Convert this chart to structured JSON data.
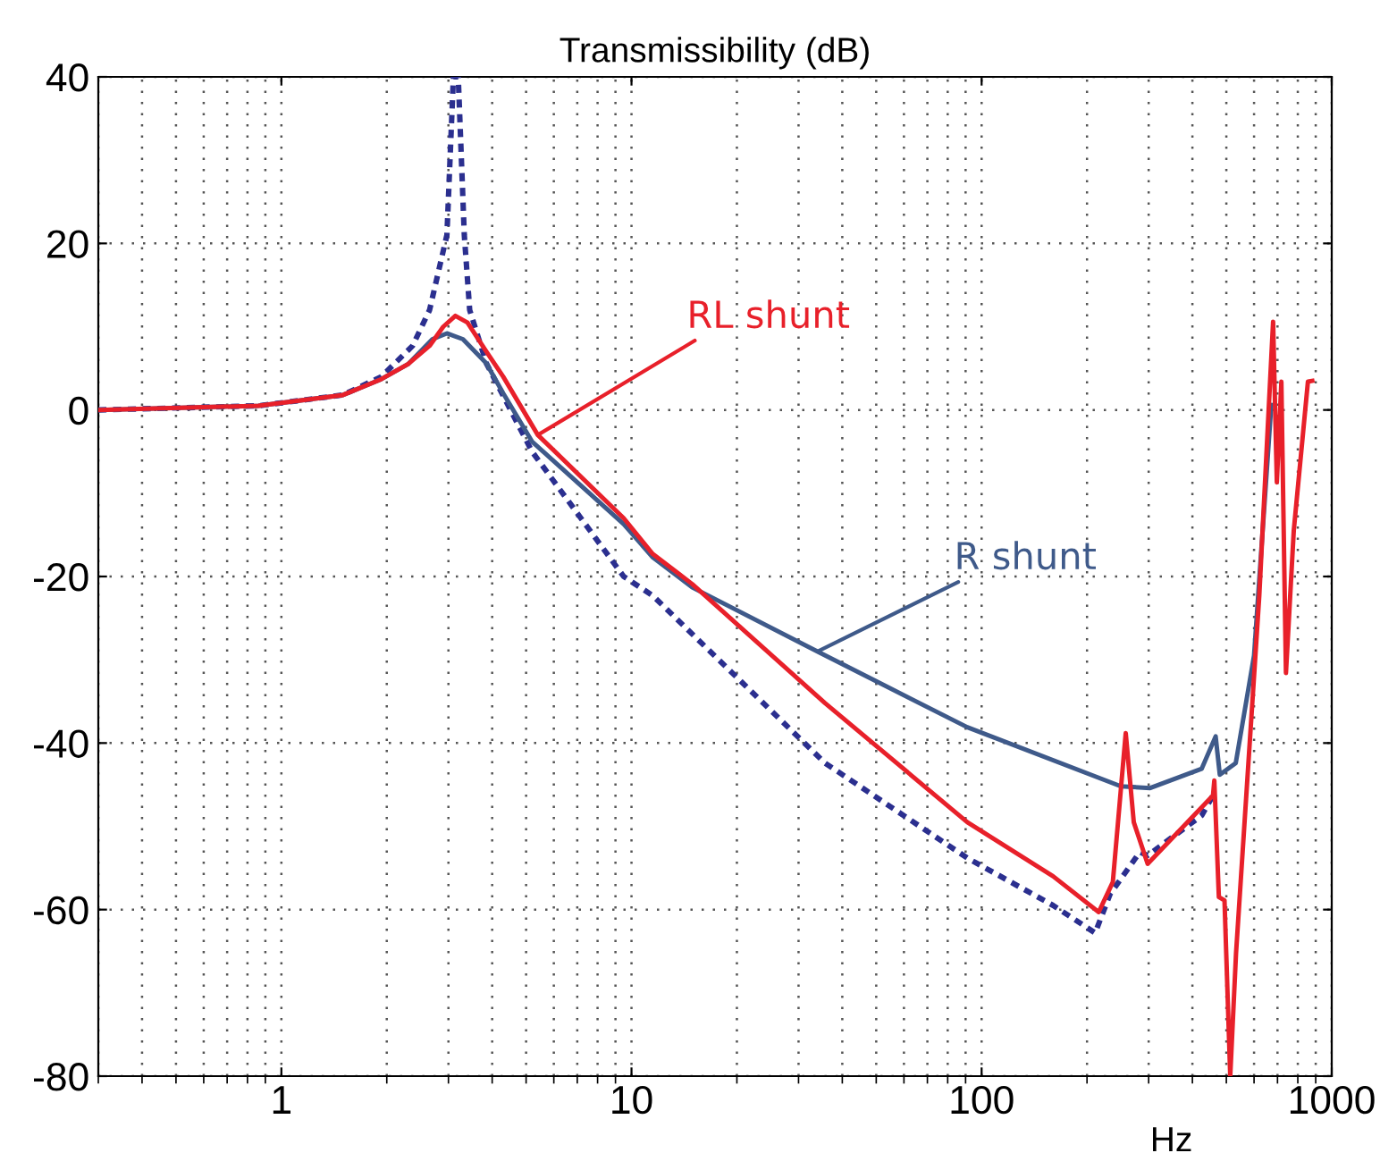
{
  "chart_data": {
    "type": "line",
    "title": "Transmissibility (dB)",
    "xlabel": "Hz",
    "log": "x",
    "grid": true,
    "legend": false,
    "xlim": [
      0.3,
      1000
    ],
    "xticks": [
      1,
      10,
      100,
      1000
    ],
    "ylim": [
      -80,
      40
    ],
    "yticks": [
      -80,
      -60,
      -40,
      -20,
      0,
      20,
      40
    ],
    "annotations": [
      {
        "text": "RL shunt",
        "x": 5.4,
        "y": -3
      },
      {
        "text": "R shunt",
        "x": 34,
        "y": -29
      }
    ],
    "series": [
      {
        "color": "#e8202a",
        "line_style": "solid",
        "x": [
          0.3,
          0.86,
          1.5,
          1.93,
          2.3,
          2.65,
          2.9,
          3.14,
          3.4,
          3.85,
          4.3,
          5.4,
          9.5,
          11.5,
          14.9,
          35.7,
          91,
          160,
          216,
          237,
          258,
          272,
          298,
          458,
          462,
          476,
          494,
          513,
          533,
          621,
          672,
          680,
          697,
          718,
          740,
          779,
          855,
          880
        ],
        "values": [
          0,
          0.5,
          1.8,
          3.7,
          5.5,
          7.7,
          10,
          11.3,
          10.5,
          7,
          4,
          -3,
          -13,
          -17.3,
          -20.9,
          -35.2,
          -49.5,
          -56,
          -60.3,
          -56.7,
          -38.8,
          -49.5,
          -54.5,
          -46.3,
          -44.5,
          -58.5,
          -58.9,
          -80,
          -65.2,
          -22.3,
          6.3,
          10.6,
          -8.7,
          3.4,
          -31.6,
          -14.5,
          3.4,
          3.5
        ]
      },
      {
        "color": "#3f5a8a",
        "line_style": "solid",
        "x": [
          0.3,
          0.86,
          1.5,
          1.93,
          2.3,
          2.7,
          2.97,
          3.3,
          3.85,
          4.3,
          5.2,
          9.5,
          11.5,
          14.9,
          34.3,
          91,
          250,
          303,
          425,
          466,
          479,
          532,
          600,
          672
        ],
        "values": [
          0,
          0.5,
          1.8,
          3.7,
          5.5,
          8.5,
          9.2,
          8.5,
          5.6,
          2,
          -3.8,
          -13.7,
          -17.7,
          -21.3,
          -29.1,
          -38.1,
          -45.2,
          -45.4,
          -43.1,
          -39.2,
          -43.8,
          -42.4,
          -29.5,
          0.6
        ]
      },
      {
        "color": "#2b2f8f",
        "line_style": "dotted",
        "x": [
          0.3,
          0.86,
          1.5,
          1.93,
          2.37,
          2.65,
          2.97,
          3.1,
          3.2,
          3.33,
          3.45,
          3.85,
          5.2,
          9.5,
          11.5,
          35.7,
          91,
          160,
          211,
          233,
          283,
          298,
          425,
          458
        ],
        "values": [
          0,
          0.5,
          1.8,
          4,
          7.7,
          12,
          21,
          40,
          40,
          21,
          12,
          5.6,
          -5,
          -20,
          -22.3,
          -42.4,
          -53.8,
          -59.5,
          -62.8,
          -58.1,
          -53.1,
          -53.5,
          -48.7,
          -46.3
        ]
      }
    ]
  }
}
